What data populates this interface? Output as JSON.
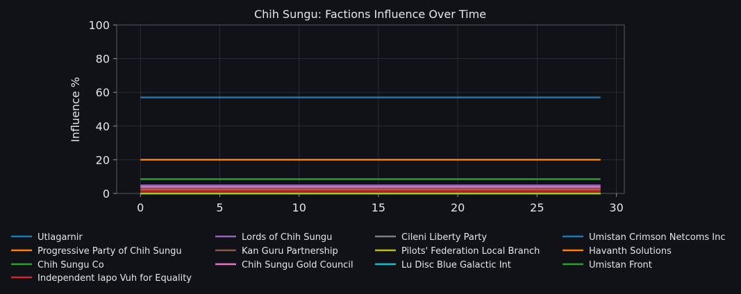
{
  "chart_data": {
    "type": "line",
    "title": "Chih Sungu: Factions Influence Over Time",
    "xlabel": "",
    "ylabel": "Influence %",
    "xlim": [
      -1.5,
      30.5
    ],
    "ylim": [
      0,
      100
    ],
    "xticks": [
      0,
      5,
      10,
      15,
      20,
      25,
      30
    ],
    "yticks": [
      0,
      20,
      40,
      60,
      80,
      100
    ],
    "grid": true,
    "legend_position": "bottom",
    "x_range": [
      0,
      29
    ],
    "series": [
      {
        "name": "Utlagarnir",
        "color": "#1f77b4",
        "value": 57.0
      },
      {
        "name": "Progressive Party of Chih Sungu",
        "color": "#ff7f0e",
        "value": 20.0
      },
      {
        "name": "Chih Sungu Co",
        "color": "#2ca02c",
        "value": 8.5
      },
      {
        "name": "Independent Iapo Vuh for Equality",
        "color": "#d62728",
        "value": 1.5
      },
      {
        "name": "Lords of Chih Sungu",
        "color": "#9467bd",
        "value": 4.8
      },
      {
        "name": "Kan Guru Partnership",
        "color": "#8c564b",
        "value": 3.0
      },
      {
        "name": "Chih Sungu Gold Council",
        "color": "#e377c2",
        "value": 4.0
      },
      {
        "name": "Cileni Liberty Party",
        "color": "#7f7f7f",
        "value": 2.5
      },
      {
        "name": "Pilots' Federation Local Branch",
        "color": "#bcbd22",
        "value": 0.0
      },
      {
        "name": "Lu Disc Blue Galactic Int",
        "color": "#17becf",
        "value": 0.0
      },
      {
        "name": "Umistan Crimson Netcoms Inc",
        "color": "#1f77b4",
        "value": 0.0
      },
      {
        "name": "Havanth Solutions",
        "color": "#ff7f0e",
        "value": 0.0
      },
      {
        "name": "Umistan Front",
        "color": "#2ca02c",
        "value": 0.0
      }
    ]
  }
}
